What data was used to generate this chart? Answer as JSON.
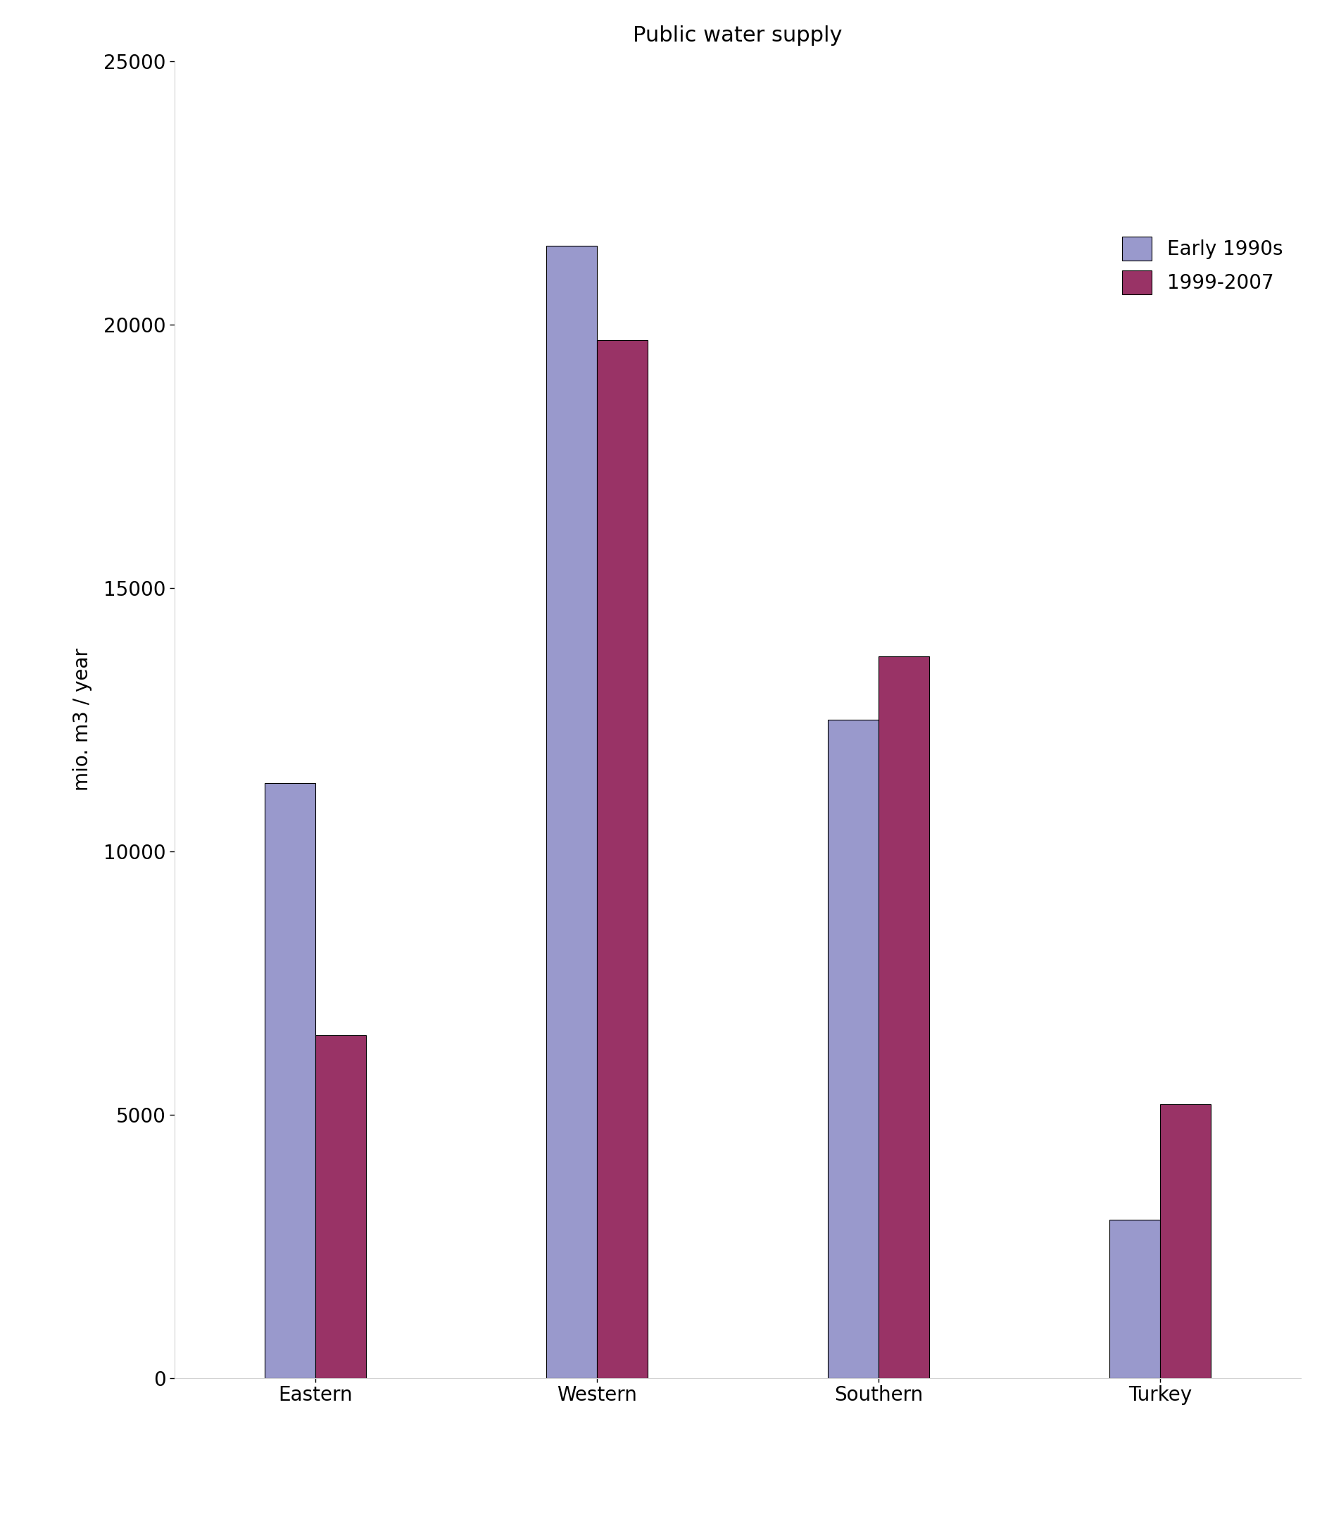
{
  "title": "Public water supply",
  "ylabel": "mio. m3 / year",
  "categories": [
    "Eastern",
    "Western",
    "Southern",
    "Turkey"
  ],
  "early_1990s": [
    11300,
    21500,
    12500,
    3000
  ],
  "period_1999_2007": [
    6500,
    19700,
    13700,
    5200
  ],
  "color_early": "#9999cc",
  "color_1999": "#993366",
  "ylim": [
    0,
    25000
  ],
  "yticks": [
    0,
    5000,
    10000,
    15000,
    20000,
    25000
  ],
  "legend_labels": [
    "Early 1990s",
    "1999-2007"
  ],
  "bar_width": 0.18,
  "title_fontsize": 22,
  "axis_fontsize": 20,
  "tick_fontsize": 20,
  "legend_fontsize": 20
}
